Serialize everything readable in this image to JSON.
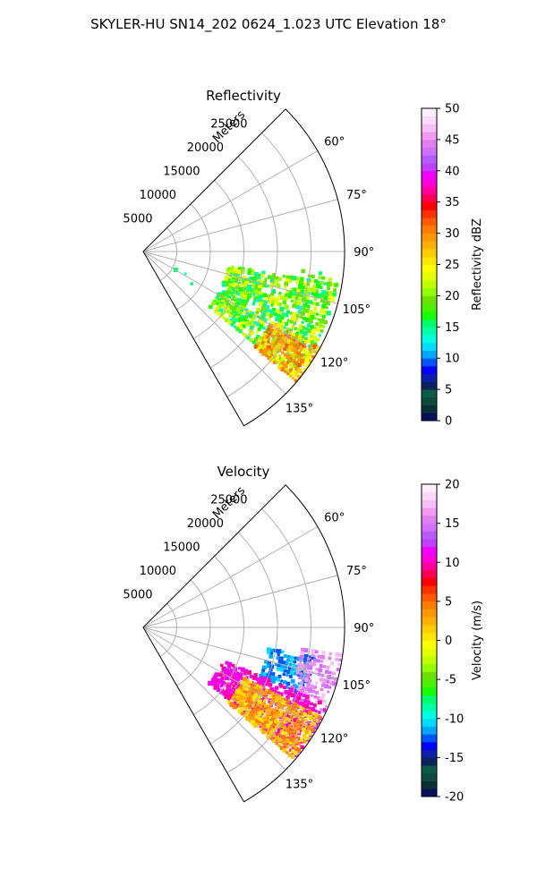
{
  "figure_title": "SKYLER-HU  SN14_202  0624_1.023 UTC Elevation 18°",
  "range_axis_label": "Meters",
  "chart_data": [
    {
      "type": "heatmap",
      "title": "Reflectivity",
      "projection": "polar-sector",
      "azimuth_range_deg": [
        45,
        150
      ],
      "azimuth_ticks": [
        "60°",
        "75°",
        "90°",
        "105°",
        "120°",
        "135°"
      ],
      "range_ticks": [
        "5000",
        "10000",
        "15000",
        "20000",
        "25000"
      ],
      "range_max_m": 30000,
      "colorbar": {
        "label": "Reflectivity dBZ",
        "range": [
          0,
          50
        ],
        "ticks": [
          "0",
          "5",
          "10",
          "15",
          "20",
          "25",
          "30",
          "35",
          "40",
          "45",
          "50"
        ],
        "colors": [
          "#08105a",
          "#0b2f36",
          "#0d4a3b",
          "#0e5a48",
          "#10225e",
          "#0b1fa8",
          "#0000ff",
          "#0055ff",
          "#00a7ff",
          "#00dcff",
          "#00ffe0",
          "#00ffa8",
          "#00ff66",
          "#18ff00",
          "#4df000",
          "#6de000",
          "#94ff00",
          "#c0ff00",
          "#e4ff00",
          "#ffff00",
          "#ffe600",
          "#ffcc00",
          "#ffb000",
          "#ff9800",
          "#ff7d00",
          "#ff5a00",
          "#ff3000",
          "#ff0000",
          "#ff0050",
          "#ff009a",
          "#ff00d8",
          "#f000ff",
          "#c040ff",
          "#b65cff",
          "#d070ff",
          "#e080ee",
          "#f09af0",
          "#f6bff6",
          "#fad8fa",
          "#fdeefd"
        ]
      },
      "echo_regions": [
        {
          "az": [
            100,
            130
          ],
          "r": [
            13000,
            29500
          ],
          "value_range": [
            14,
            24
          ],
          "density": 0.7
        },
        {
          "az": [
            119,
            131
          ],
          "r": [
            22000,
            30000
          ],
          "value_range": [
            24,
            32
          ],
          "density": 0.85
        },
        {
          "az": [
            97,
            107
          ],
          "r": [
            24000,
            29500
          ],
          "value_range": [
            15,
            22
          ],
          "density": 0.45
        },
        {
          "az": [
            118,
            125
          ],
          "r": [
            4000,
            9000
          ],
          "value_range": [
            12,
            16
          ],
          "density": 0.05
        }
      ]
    },
    {
      "type": "heatmap",
      "title": "Velocity",
      "projection": "polar-sector",
      "azimuth_range_deg": [
        45,
        150
      ],
      "azimuth_ticks": [
        "60°",
        "75°",
        "90°",
        "105°",
        "120°",
        "135°"
      ],
      "range_ticks": [
        "5000",
        "10000",
        "15000",
        "20000",
        "25000"
      ],
      "range_max_m": 30000,
      "colorbar": {
        "label": "Velocity (m/s)",
        "range": [
          -20,
          20
        ],
        "ticks": [
          "-20",
          "-15",
          "-10",
          "-5",
          "0",
          "5",
          "10",
          "15",
          "20"
        ],
        "colors": [
          "#08105a",
          "#0b2f36",
          "#0d4a3b",
          "#0e5a48",
          "#10225e",
          "#0b1fa8",
          "#0000ff",
          "#0055ff",
          "#00a7ff",
          "#00dcff",
          "#00ffe0",
          "#00ffa8",
          "#00ff66",
          "#18ff00",
          "#4df000",
          "#6de000",
          "#94ff00",
          "#c0ff00",
          "#e4ff00",
          "#ffff00",
          "#ffe600",
          "#ffcc00",
          "#ffb000",
          "#ff9800",
          "#ff7d00",
          "#ff5a00",
          "#ff3000",
          "#ff0000",
          "#ff0050",
          "#ff009a",
          "#ff00d8",
          "#f000ff",
          "#c040ff",
          "#b65cff",
          "#d070ff",
          "#e080ee",
          "#f09af0",
          "#f6bff6",
          "#fad8fa",
          "#fdeefd"
        ]
      },
      "echo_regions": [
        {
          "az": [
            100,
            113
          ],
          "r": [
            19000,
            26000
          ],
          "value_range": [
            -13,
            -10
          ],
          "density": 0.65
        },
        {
          "az": [
            98,
            115
          ],
          "r": [
            24000,
            30000
          ],
          "value_range": [
            14,
            18
          ],
          "density": 0.65
        },
        {
          "az": [
            113,
            130
          ],
          "r": [
            13000,
            30000
          ],
          "value_range": [
            9,
            12
          ],
          "density": 0.75
        },
        {
          "az": [
            117,
            132
          ],
          "r": [
            17000,
            29500
          ],
          "value_range": [
            0,
            5
          ],
          "density": 0.85
        }
      ]
    }
  ]
}
